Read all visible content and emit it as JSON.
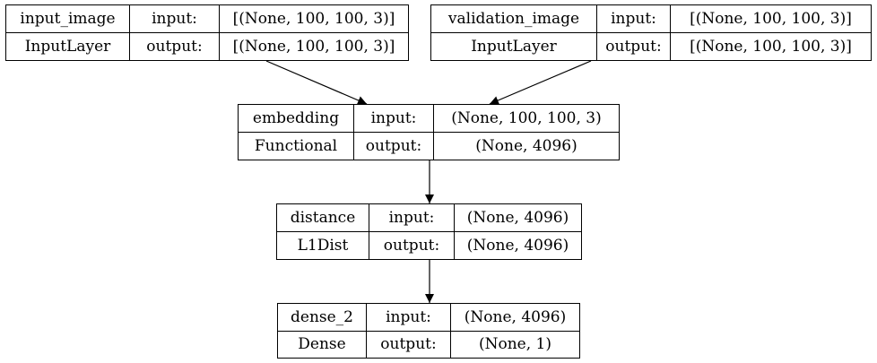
{
  "nodes": [
    {
      "name": "input_image",
      "class": "InputLayer",
      "input_label": "input:",
      "output_label": "output:",
      "input_shape": "[(None, 100, 100, 3)]",
      "output_shape": "[(None, 100, 100, 3)]"
    },
    {
      "name": "validation_image",
      "class": "InputLayer",
      "input_label": "input:",
      "output_label": "output:",
      "input_shape": "[(None, 100, 100, 3)]",
      "output_shape": "[(None, 100, 100, 3)]"
    },
    {
      "name": "embedding",
      "class": "Functional",
      "input_label": "input:",
      "output_label": "output:",
      "input_shape": "(None, 100, 100, 3)",
      "output_shape": "(None, 4096)"
    },
    {
      "name": "distance",
      "class": "L1Dist",
      "input_label": "input:",
      "output_label": "output:",
      "input_shape": "(None, 4096)",
      "output_shape": "(None, 4096)"
    },
    {
      "name": "dense_2",
      "class": "Dense",
      "input_label": "input:",
      "output_label": "output:",
      "input_shape": "(None, 4096)",
      "output_shape": "(None, 1)"
    }
  ],
  "edges": [
    {
      "from": "input_image",
      "to": "embedding"
    },
    {
      "from": "validation_image",
      "to": "embedding"
    },
    {
      "from": "embedding",
      "to": "distance"
    },
    {
      "from": "distance",
      "to": "dense_2"
    }
  ],
  "colors": {
    "line": "#000000",
    "background": "#ffffff"
  }
}
